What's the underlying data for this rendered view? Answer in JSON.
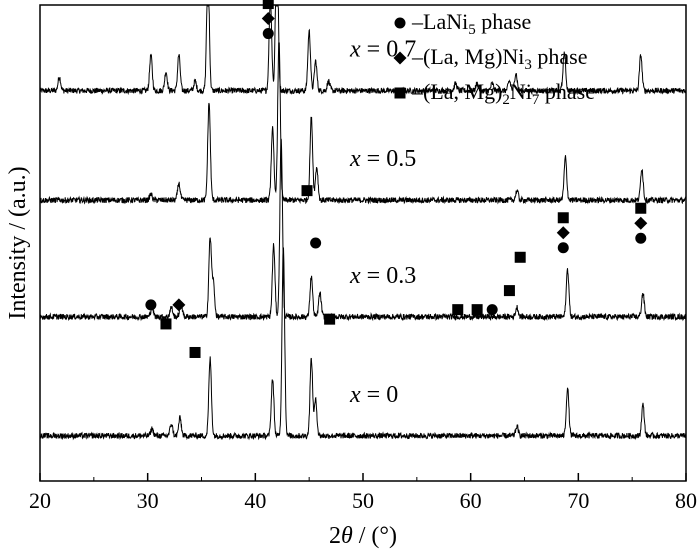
{
  "chart_data": {
    "type": "line",
    "xlabel_prefix": "2",
    "xlabel_symbol": "θ",
    "xlabel_suffix": " / (°)",
    "ylabel": "Intensity / (a.u.)",
    "xlim": [
      20,
      80
    ],
    "xticks": [
      "20",
      "30",
      "40",
      "50",
      "60",
      "70",
      "80"
    ],
    "grid": false,
    "legend_position": "top-right",
    "legend": [
      {
        "marker": "circle",
        "prefix": "–LaNi",
        "sub": "5",
        "suffix": " phase"
      },
      {
        "marker": "diamond",
        "prefix": "–(La, Mg)Ni",
        "sub": "3",
        "suffix": " phase"
      },
      {
        "marker": "square",
        "prefix": "–(La, Mg)",
        "sub": "2",
        "suffix": "Ni",
        "sub2": "7",
        "suffix2": " phase"
      }
    ],
    "series": [
      {
        "var": "x",
        "eq": " = 0.7",
        "baseline": 0.82,
        "peaks": [
          [
            21.8,
            0.12
          ],
          [
            30.3,
            0.3
          ],
          [
            31.7,
            0.16
          ],
          [
            32.9,
            0.3
          ],
          [
            34.4,
            0.08
          ],
          [
            35.6,
            1.05
          ],
          [
            41.4,
            0.78
          ],
          [
            42.0,
            1.4
          ],
          [
            45.0,
            0.5
          ],
          [
            45.6,
            0.25
          ],
          [
            46.8,
            0.08
          ],
          [
            58.6,
            0.06
          ],
          [
            60.6,
            0.06
          ],
          [
            62.0,
            0.06
          ],
          [
            63.6,
            0.08
          ],
          [
            64.2,
            0.15
          ],
          [
            68.7,
            0.32
          ],
          [
            75.8,
            0.3
          ]
        ]
      },
      {
        "var": "x",
        "eq": " = 0.5",
        "baseline": 0.59,
        "peaks": [
          [
            30.3,
            0.05
          ],
          [
            32.9,
            0.14
          ],
          [
            35.7,
            0.82
          ],
          [
            41.6,
            0.6
          ],
          [
            42.2,
            1.34
          ],
          [
            45.2,
            0.7
          ],
          [
            45.7,
            0.28
          ],
          [
            64.3,
            0.08
          ],
          [
            68.8,
            0.36
          ],
          [
            75.9,
            0.27
          ]
        ]
      },
      {
        "var": "x",
        "eq": " = 0.3",
        "baseline": 0.345,
        "peaks": [
          [
            30.4,
            0.08
          ],
          [
            32.2,
            0.08
          ],
          [
            33.1,
            0.12
          ],
          [
            35.8,
            0.66
          ],
          [
            36.1,
            0.28
          ],
          [
            41.7,
            0.6
          ],
          [
            42.4,
            1.5
          ],
          [
            45.2,
            0.34
          ],
          [
            46.0,
            0.2
          ],
          [
            64.3,
            0.08
          ],
          [
            69.0,
            0.4
          ],
          [
            76.0,
            0.2
          ]
        ]
      },
      {
        "var": "x",
        "eq": " = 0",
        "baseline": 0.095,
        "peaks": [
          [
            30.4,
            0.06
          ],
          [
            32.2,
            0.1
          ],
          [
            33.0,
            0.15
          ],
          [
            35.8,
            0.65
          ],
          [
            41.6,
            0.48
          ],
          [
            42.6,
            1.6
          ],
          [
            45.2,
            0.65
          ],
          [
            45.6,
            0.3
          ],
          [
            64.3,
            0.08
          ],
          [
            69.0,
            0.4
          ],
          [
            76.0,
            0.26
          ]
        ]
      }
    ],
    "phase_markers": [
      {
        "x": 30.3,
        "level": 0.37,
        "stack": [
          "circle"
        ]
      },
      {
        "x": 31.7,
        "level": 0.33,
        "stack": [
          "square"
        ]
      },
      {
        "x": 32.9,
        "level": 0.37,
        "stack": [
          "diamond"
        ]
      },
      {
        "x": 34.4,
        "level": 0.27,
        "stack": [
          "square"
        ]
      },
      {
        "x": 35.6,
        "level": 1.12,
        "stack": [
          "circle",
          "diamond",
          "square"
        ]
      },
      {
        "x": 41.2,
        "level": 0.94,
        "stack": [
          "circle",
          "diamond",
          "square"
        ]
      },
      {
        "x": 42.0,
        "level": 1.49,
        "stack": [
          "circle",
          "diamond",
          "square"
        ]
      },
      {
        "x": 44.8,
        "level": 0.61,
        "stack": [
          "square"
        ]
      },
      {
        "x": 45.6,
        "level": 0.5,
        "stack": [
          "circle"
        ]
      },
      {
        "x": 46.9,
        "level": 0.34,
        "stack": [
          "square"
        ]
      },
      {
        "x": 58.8,
        "level": 0.36,
        "stack": [
          "square"
        ]
      },
      {
        "x": 60.6,
        "level": 0.36,
        "stack": [
          "square"
        ]
      },
      {
        "x": 62.0,
        "level": 0.36,
        "stack": [
          "circle"
        ]
      },
      {
        "x": 63.6,
        "level": 0.4,
        "stack": [
          "square"
        ]
      },
      {
        "x": 64.6,
        "level": 0.47,
        "stack": [
          "square"
        ]
      },
      {
        "x": 68.6,
        "level": 0.49,
        "stack": [
          "circle",
          "diamond",
          "square"
        ]
      },
      {
        "x": 75.8,
        "level": 0.51,
        "stack": [
          "circle",
          "diamond",
          "square"
        ]
      }
    ]
  }
}
